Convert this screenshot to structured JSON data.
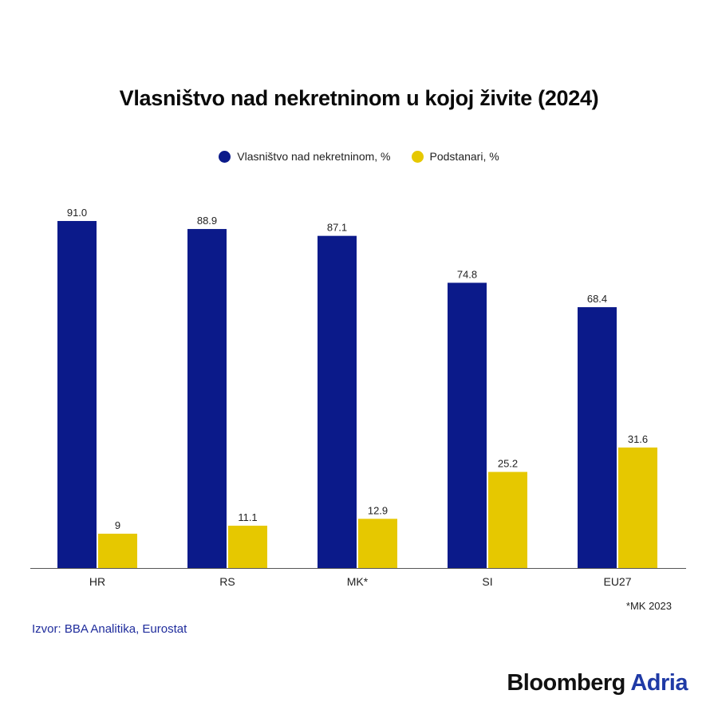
{
  "title": "Vlasništvo nad nekretninom u kojoj živite (2024)",
  "legend": [
    {
      "label": "Vlasništvo nad nekretninom, %",
      "color": "#0b1a8a"
    },
    {
      "label": "Podstanari, %",
      "color": "#e6c800"
    }
  ],
  "chart_data": {
    "type": "bar",
    "title": "Vlasništvo nad nekretninom u kojoj živite (2024)",
    "categories": [
      "HR",
      "RS",
      "MK*",
      "SI",
      "EU27"
    ],
    "series": [
      {
        "name": "Vlasništvo nad nekretninom, %",
        "values": [
          91.0,
          88.9,
          87.1,
          74.8,
          68.4
        ],
        "labels": [
          "91.0",
          "88.9",
          "87.1",
          "74.8",
          "68.4"
        ],
        "color": "#0b1a8a"
      },
      {
        "name": "Podstanari, %",
        "values": [
          9,
          11.1,
          12.9,
          25.2,
          31.6
        ],
        "labels": [
          "9",
          "11.1",
          "12.9",
          "25.2",
          "31.6"
        ],
        "color": "#e6c800"
      }
    ],
    "ylim": [
      0,
      100
    ],
    "grid": false,
    "legend_position": "top-center"
  },
  "note": "*MK 2023",
  "source": "Izvor: BBA Analitika, Eurostat",
  "brand": {
    "part1": "Bloomberg",
    "part2": "Adria"
  }
}
